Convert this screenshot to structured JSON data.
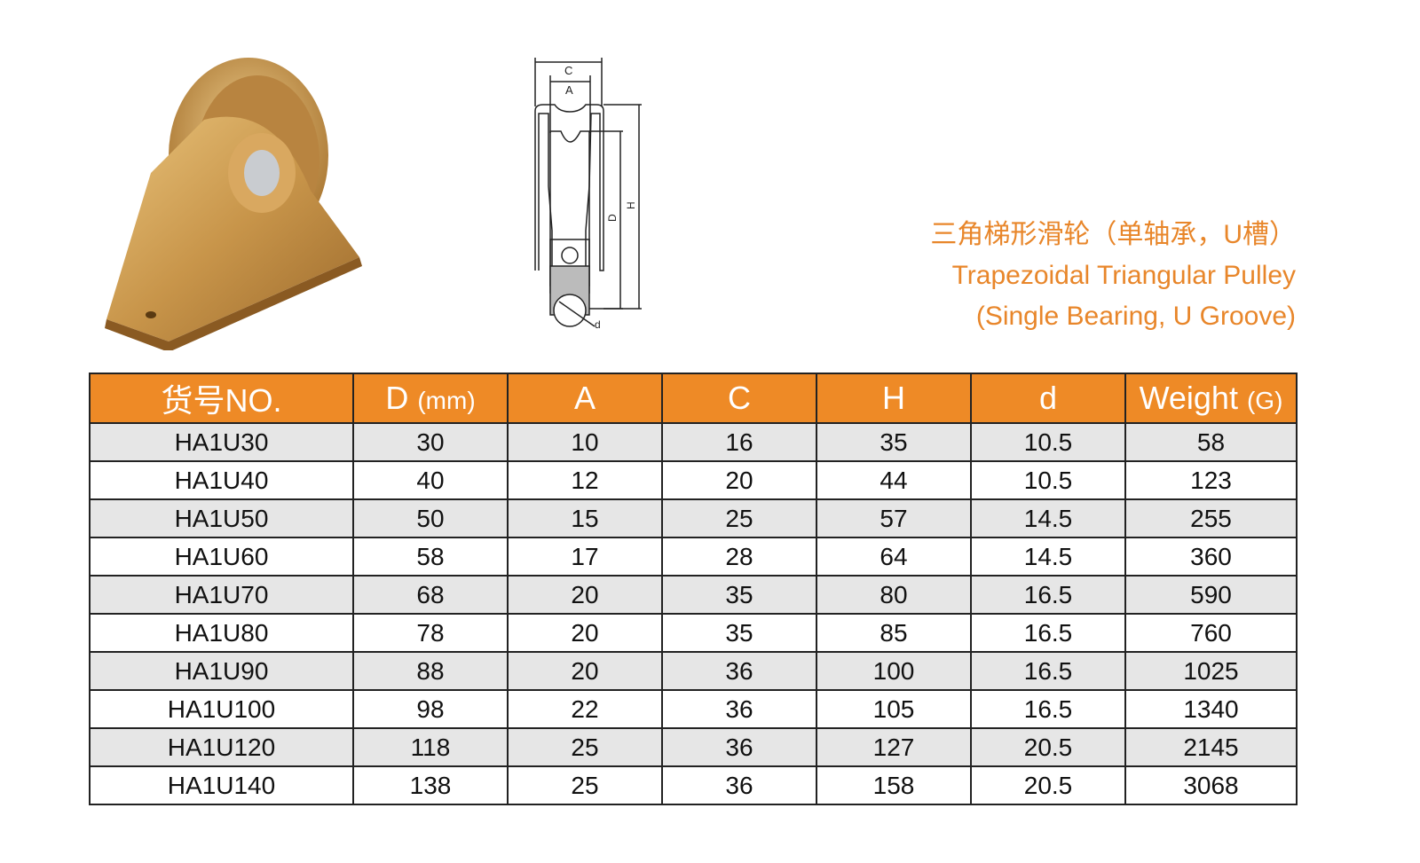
{
  "title": {
    "cn": "三角梯形滑轮（单轴承，U槽）",
    "en_line1": "Trapezoidal Triangular Pulley",
    "en_line2": "(Single Bearing, U Groove)"
  },
  "drawing_labels": {
    "C": "C",
    "A": "A",
    "H": "H",
    "D": "D",
    "d": "d"
  },
  "colors": {
    "accent": "#EE8A26",
    "title": "#E8862A",
    "row_alt": "#e6e6e6"
  },
  "table": {
    "headers": [
      {
        "label": "货号NO.",
        "unit": ""
      },
      {
        "label": "D",
        "unit": "(mm)"
      },
      {
        "label": "A",
        "unit": ""
      },
      {
        "label": "C",
        "unit": ""
      },
      {
        "label": "H",
        "unit": ""
      },
      {
        "label": "d",
        "unit": ""
      },
      {
        "label": "Weight",
        "unit": "(G)"
      }
    ],
    "rows": [
      [
        "HA1U30",
        "30",
        "10",
        "16",
        "35",
        "10.5",
        "58"
      ],
      [
        "HA1U40",
        "40",
        "12",
        "20",
        "44",
        "10.5",
        "123"
      ],
      [
        "HA1U50",
        "50",
        "15",
        "25",
        "57",
        "14.5",
        "255"
      ],
      [
        "HA1U60",
        "58",
        "17",
        "28",
        "64",
        "14.5",
        "360"
      ],
      [
        "HA1U70",
        "68",
        "20",
        "35",
        "80",
        "16.5",
        "590"
      ],
      [
        "HA1U80",
        "78",
        "20",
        "35",
        "85",
        "16.5",
        "760"
      ],
      [
        "HA1U90",
        "88",
        "20",
        "36",
        "100",
        "16.5",
        "1025"
      ],
      [
        "HA1U100",
        "98",
        "22",
        "36",
        "105",
        "16.5",
        "1340"
      ],
      [
        "HA1U120",
        "118",
        "25",
        "36",
        "127",
        "20.5",
        "2145"
      ],
      [
        "HA1U140",
        "138",
        "25",
        "36",
        "158",
        "20.5",
        "3068"
      ]
    ]
  }
}
